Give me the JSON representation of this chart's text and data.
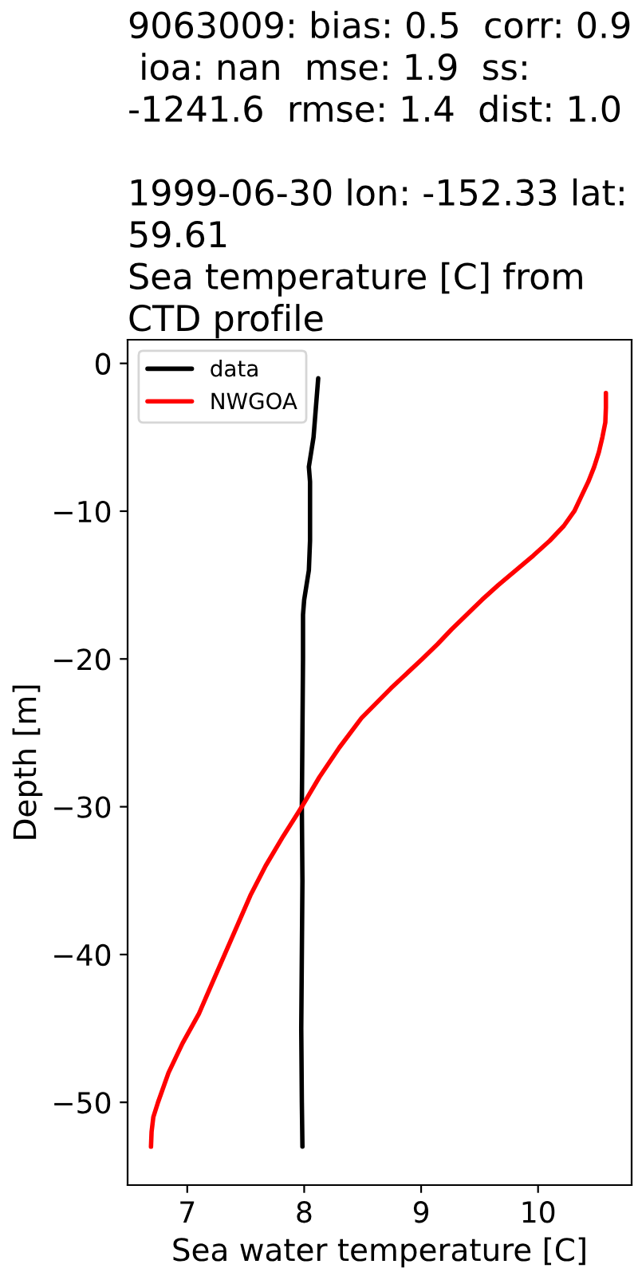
{
  "chart_data": {
    "type": "line",
    "title": "9063009: bias: 0.5  corr: 0.9\n ioa: nan  mse: 1.9  ss:\n-1241.6  rmse: 1.4  dist: 1.0\n\n1999-06-30 lon: -152.33 lat:\n59.61\nSea temperature [C] from\nCTD profile",
    "xlabel": "Sea water temperature [C]",
    "ylabel": "Depth [m]",
    "series": [
      {
        "name": "data",
        "color": "#000000",
        "x": [
          8.12,
          8.11,
          8.1,
          8.09,
          8.08,
          8.06,
          8.04,
          8.05,
          8.05,
          8.05,
          8.04,
          8.02,
          8.0,
          7.99,
          7.99,
          7.985,
          7.98,
          7.985,
          7.98,
          7.975,
          7.98,
          7.985
        ],
        "values": [
          -1,
          -2,
          -3,
          -4,
          -5,
          -6,
          -7,
          -8,
          -10,
          -12,
          -14,
          -15,
          -16,
          -17,
          -20,
          -25,
          -30,
          -35,
          -40,
          -45,
          -50,
          -53
        ]
      },
      {
        "name": "NWGOA",
        "color": "#ff0000",
        "x": [
          10.58,
          10.58,
          10.575,
          10.55,
          10.52,
          10.48,
          10.43,
          10.37,
          10.31,
          10.22,
          10.1,
          9.96,
          9.81,
          9.66,
          9.52,
          9.39,
          9.26,
          9.14,
          9.01,
          8.74,
          8.49,
          8.3,
          8.13,
          7.98,
          7.82,
          7.67,
          7.54,
          7.43,
          7.32,
          7.21,
          7.1,
          6.96,
          6.84,
          6.75,
          6.71,
          6.695,
          6.69
        ],
        "values": [
          -2,
          -3,
          -4,
          -5,
          -6,
          -7,
          -8,
          -9,
          -10,
          -11,
          -12,
          -13,
          -14,
          -15,
          -16,
          -17,
          -18,
          -19,
          -20,
          -22,
          -24,
          -26,
          -28,
          -30,
          -32,
          -34,
          -36,
          -38,
          -40,
          -42,
          -44,
          -46,
          -48,
          -50,
          -51,
          -52,
          -53
        ]
      }
    ],
    "xlim": [
      6.49,
      10.8
    ],
    "xticks": [
      7,
      8,
      9,
      10
    ],
    "ylim": [
      -55.6,
      1.6
    ],
    "yticks": [
      {
        "value": 0,
        "label": "0"
      },
      {
        "value": -10,
        "label": "−10"
      },
      {
        "value": -20,
        "label": "−20"
      },
      {
        "value": -30,
        "label": "−30"
      },
      {
        "value": -40,
        "label": "−40"
      },
      {
        "value": -50,
        "label": "−50"
      }
    ],
    "grid": false,
    "legend": "top left",
    "marker": "none",
    "line_style": "solid"
  }
}
